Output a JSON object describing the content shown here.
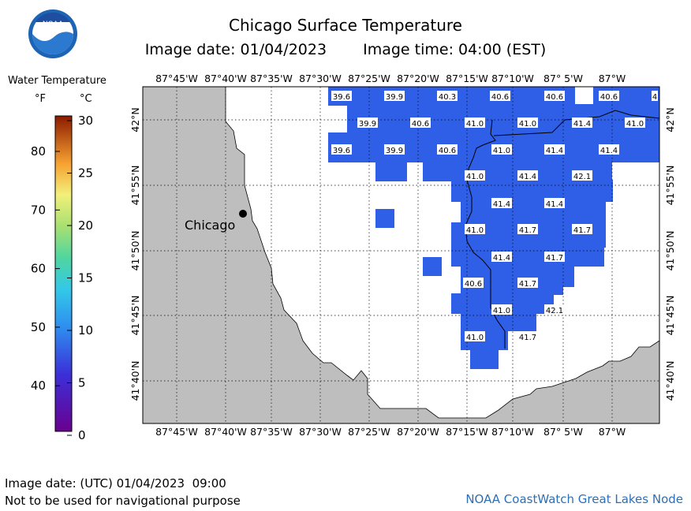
{
  "header": {
    "title": "Chicago Surface Temperature",
    "image_date": "Image date: 01/04/2023",
    "image_time": "Image time: 04:00 (EST)"
  },
  "logo": {
    "text": "NOAA",
    "icon": "noaa-logo"
  },
  "legend": {
    "title": "Water Temperature",
    "unit_f": "°F",
    "unit_c": "°C",
    "f_ticks": [
      "80",
      "70",
      "60",
      "50",
      "40"
    ],
    "c_ticks": [
      "30",
      "25",
      "20",
      "15",
      "10",
      "5",
      "0"
    ]
  },
  "map": {
    "top_lon_labels": [
      "87°45'W",
      "87°40'W",
      "87°35'W",
      "87°30'W",
      "87°25'W",
      "87°20'W",
      "87°15'W",
      "87°10'W",
      "87° 5'W",
      "87°W"
    ],
    "bottom_lon_labels": [
      "87°45'W",
      "87°40'W",
      "87°35'W",
      "87°30'W",
      "87°25'W",
      "87°20'W",
      "87°15'W",
      "87°10'W",
      "87° 5'W",
      "87°W"
    ],
    "left_lat_labels": [
      "42°N",
      "41°55'N",
      "41°50'N",
      "41°45'N",
      "41°40'N"
    ],
    "right_lat_labels": [
      "42°N",
      "41°55'N",
      "41°50'N",
      "41°45'N",
      "41°40'N"
    ],
    "city": "Chicago",
    "temps": [
      {
        "v": "39.6"
      },
      {
        "v": "39.9"
      },
      {
        "v": "40.3"
      },
      {
        "v": "40.6"
      },
      {
        "v": "40.6"
      },
      {
        "v": "40.6"
      },
      {
        "v": "4"
      },
      {
        "v": "39.9"
      },
      {
        "v": "40.6"
      },
      {
        "v": "41.0"
      },
      {
        "v": "41.0"
      },
      {
        "v": "41.4"
      },
      {
        "v": "41.0"
      },
      {
        "v": "39.6"
      },
      {
        "v": "39.9"
      },
      {
        "v": "40.6"
      },
      {
        "v": "41.0"
      },
      {
        "v": "41.4"
      },
      {
        "v": "41.4"
      },
      {
        "v": "41.0"
      },
      {
        "v": "41.4"
      },
      {
        "v": "42.1"
      },
      {
        "v": "41.4"
      },
      {
        "v": "41.4"
      },
      {
        "v": "41.0"
      },
      {
        "v": "41.7"
      },
      {
        "v": "41.7"
      },
      {
        "v": "41.4"
      },
      {
        "v": "41.7"
      },
      {
        "v": "40.6"
      },
      {
        "v": "41.7"
      },
      {
        "v": "41.0"
      },
      {
        "v": "42.1"
      },
      {
        "v": "41.0"
      },
      {
        "v": "41.7"
      }
    ],
    "colors": {
      "water_data": "#2f5fe6",
      "land": "#bebebe",
      "grid": "#000000"
    }
  },
  "footer": {
    "utc_date": "Image date: (UTC) 01/04/2023  09:00",
    "disclaimer": "Not to be used for navigational purpose",
    "credit": "NOAA CoastWatch Great Lakes Node"
  }
}
